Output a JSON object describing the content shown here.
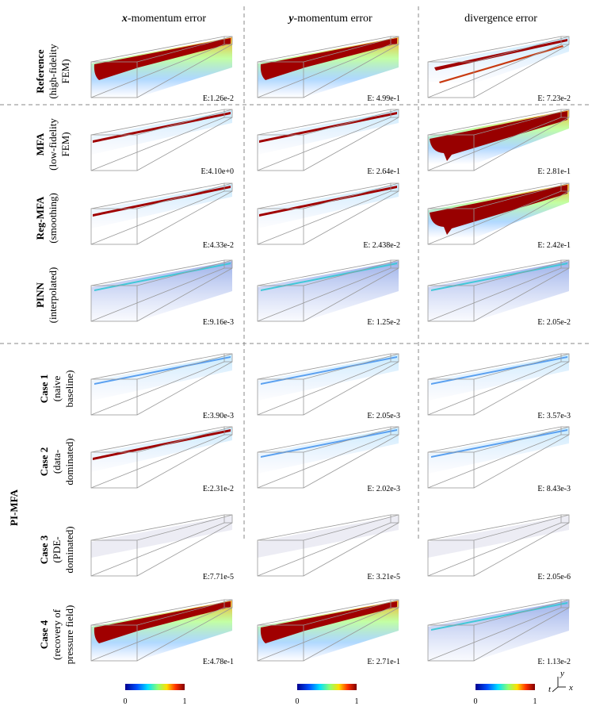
{
  "columns": [
    {
      "italic": "x",
      "text": "-momentum error"
    },
    {
      "italic": "y",
      "text": "-momentum error"
    },
    {
      "text": "divergence error"
    }
  ],
  "rows": [
    {
      "title": "Reference",
      "sub": [
        "(high-fidelity",
        "FEM)"
      ],
      "errors": [
        "E:1.26e-2",
        "E: 4.99e-1",
        "E: 7.23e-2"
      ]
    },
    {
      "title": "MFA",
      "sub": [
        "(low-fidelity",
        "FEM)"
      ],
      "errors": [
        "E:4.10e+0",
        "E: 2.64e-1",
        "E: 2.81e-1"
      ]
    },
    {
      "title": "Reg-MFA",
      "sub": [
        "(smoothing)"
      ],
      "errors": [
        "E:4.33e-2",
        "E: 2.438e-2",
        "E: 2.42e-1"
      ]
    },
    {
      "title": "PINN",
      "sub": [
        "(interpolated)"
      ],
      "errors": [
        "E:9.16e-3",
        "E: 1.25e-2",
        "E: 2.05e-2"
      ]
    },
    {
      "title": "Case 1",
      "sub": [
        "(naive",
        "baseline)"
      ],
      "errors": [
        "E:3.90e-3",
        "E: 2.05e-3",
        "E: 3.57e-3"
      ]
    },
    {
      "title": "Case 2",
      "sub": [
        "(data-",
        "dominated)"
      ],
      "errors": [
        "E:2.31e-2",
        "E: 2.02e-3",
        "E: 8.43e-3"
      ]
    },
    {
      "title": "Case 3",
      "sub": [
        "(PDE-",
        "dominated)"
      ],
      "errors": [
        "E:7.71e-5",
        "E: 3.21e-5",
        "E: 2.05e-6"
      ]
    },
    {
      "title": "Case 4",
      "sub": [
        "(recovery of",
        "pressure field)"
      ],
      "errors": [
        "E:4.78e-1",
        "E: 2.71e-1",
        "E: 1.13e-2"
      ]
    }
  ],
  "group": "PI-MFA",
  "colorbar": {
    "min": 0,
    "max": 1
  },
  "axes": [
    "t",
    "y",
    "x"
  ]
}
